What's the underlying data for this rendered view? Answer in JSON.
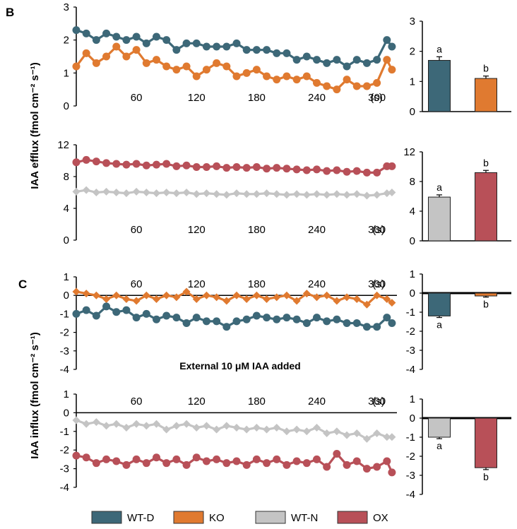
{
  "panel_labels": {
    "B": "B",
    "C": "C"
  },
  "axis_labels": {
    "efflux": "IAA efflux (fmol cm⁻² s⁻¹)",
    "influx": "IAA influx (fmol cm⁻² s⁻¹)"
  },
  "annotation": "External 10 μM IAA added",
  "time_unit": "(s)",
  "legend": [
    {
      "key": "wtd",
      "label": "WT-D",
      "color": "#3d6878"
    },
    {
      "key": "ko",
      "label": "KO",
      "color": "#e07a30"
    },
    {
      "key": "wtn",
      "label": "WT-N",
      "color": "#c4c4c4"
    },
    {
      "key": "ox",
      "label": "OX",
      "color": "#b85058"
    }
  ],
  "chart_data": [
    {
      "type": "line",
      "id": "B-top",
      "x_ticks": [
        60,
        120,
        180,
        240,
        300
      ],
      "y_ticks": [
        0,
        1,
        2,
        3
      ],
      "ylim": [
        0,
        3
      ],
      "xlim": [
        0,
        320
      ],
      "series": [
        {
          "name": "WT-D",
          "color": "#3d6878",
          "marker": "circle",
          "x": [
            0,
            10,
            20,
            30,
            40,
            50,
            60,
            70,
            80,
            90,
            100,
            110,
            120,
            130,
            140,
            150,
            160,
            170,
            180,
            190,
            200,
            210,
            220,
            230,
            240,
            250,
            260,
            270,
            280,
            290,
            300,
            310,
            315
          ],
          "y": [
            2.3,
            2.2,
            2.0,
            2.2,
            2.1,
            2.0,
            2.1,
            1.9,
            2.1,
            2.0,
            1.7,
            1.9,
            1.9,
            1.8,
            1.8,
            1.8,
            1.9,
            1.7,
            1.7,
            1.7,
            1.6,
            1.6,
            1.4,
            1.5,
            1.4,
            1.3,
            1.4,
            1.2,
            1.4,
            1.3,
            1.4,
            2.0,
            1.8
          ]
        },
        {
          "name": "KO",
          "color": "#e07a30",
          "marker": "circle",
          "x": [
            0,
            10,
            20,
            30,
            40,
            50,
            60,
            70,
            80,
            90,
            100,
            110,
            120,
            130,
            140,
            150,
            160,
            170,
            180,
            190,
            200,
            210,
            220,
            230,
            240,
            250,
            260,
            270,
            280,
            290,
            300,
            310,
            315
          ],
          "y": [
            1.2,
            1.6,
            1.3,
            1.5,
            1.8,
            1.5,
            1.7,
            1.3,
            1.4,
            1.2,
            1.1,
            1.2,
            0.9,
            1.1,
            1.3,
            1.2,
            0.9,
            1.0,
            1.1,
            0.9,
            0.8,
            0.9,
            0.8,
            0.9,
            0.7,
            0.6,
            0.5,
            0.8,
            0.6,
            0.6,
            0.7,
            1.4,
            1.1
          ]
        }
      ]
    },
    {
      "type": "bar",
      "id": "B-top-bar",
      "categories": [
        "WT-D",
        "KO"
      ],
      "values": [
        1.7,
        1.1
      ],
      "errors": [
        0.12,
        0.08
      ],
      "letters": [
        "a",
        "b"
      ],
      "y_ticks": [
        0,
        1,
        2,
        3
      ],
      "ylim": [
        0,
        3
      ]
    },
    {
      "type": "line",
      "id": "B-bottom",
      "x_ticks": [
        60,
        120,
        180,
        240,
        300
      ],
      "y_ticks": [
        0,
        4,
        8,
        12
      ],
      "ylim": [
        0,
        12
      ],
      "xlim": [
        0,
        320
      ],
      "series": [
        {
          "name": "OX",
          "color": "#b85058",
          "marker": "circle",
          "x": [
            0,
            10,
            20,
            30,
            40,
            50,
            60,
            70,
            80,
            90,
            100,
            110,
            120,
            130,
            140,
            150,
            160,
            170,
            180,
            190,
            200,
            210,
            220,
            230,
            240,
            250,
            260,
            270,
            280,
            290,
            300,
            310,
            315
          ],
          "y": [
            9.8,
            10.1,
            9.9,
            9.7,
            9.6,
            9.5,
            9.6,
            9.4,
            9.5,
            9.6,
            9.3,
            9.4,
            9.2,
            9.2,
            9.3,
            9.1,
            9.2,
            9.1,
            9.2,
            9.0,
            9.1,
            9.0,
            8.9,
            8.8,
            8.9,
            8.7,
            8.8,
            8.6,
            8.7,
            8.5,
            8.5,
            9.3,
            9.3
          ]
        },
        {
          "name": "WT-N",
          "color": "#c4c4c4",
          "marker": "diamond",
          "x": [
            0,
            10,
            20,
            30,
            40,
            50,
            60,
            70,
            80,
            90,
            100,
            110,
            120,
            130,
            140,
            150,
            160,
            170,
            180,
            190,
            200,
            210,
            220,
            230,
            240,
            250,
            260,
            270,
            280,
            290,
            300,
            310,
            315
          ],
          "y": [
            6.1,
            6.3,
            6.0,
            6.1,
            6.0,
            5.9,
            6.1,
            6.0,
            5.9,
            6.0,
            5.9,
            6.0,
            5.8,
            5.9,
            5.8,
            5.7,
            5.9,
            5.8,
            5.8,
            5.9,
            5.8,
            5.7,
            5.8,
            5.7,
            5.8,
            5.7,
            5.8,
            5.7,
            5.8,
            5.6,
            5.7,
            5.9,
            6.0
          ]
        }
      ]
    },
    {
      "type": "bar",
      "id": "B-bottom-bar",
      "categories": [
        "WT-N",
        "OX"
      ],
      "values": [
        5.9,
        9.2
      ],
      "errors": [
        0.3,
        0.3
      ],
      "letters": [
        "a",
        "b"
      ],
      "y_ticks": [
        0,
        4,
        8,
        12
      ],
      "ylim": [
        0,
        12
      ]
    },
    {
      "type": "line",
      "id": "C-top",
      "x_ticks": [
        60,
        120,
        180,
        240,
        300
      ],
      "y_ticks": [
        1,
        0,
        -1,
        -2,
        -3,
        -4
      ],
      "ylim": [
        -4,
        1
      ],
      "xlim": [
        0,
        320
      ],
      "series": [
        {
          "name": "KO",
          "color": "#e07a30",
          "marker": "diamond",
          "x": [
            0,
            10,
            20,
            30,
            40,
            50,
            60,
            70,
            80,
            90,
            100,
            110,
            120,
            130,
            140,
            150,
            160,
            170,
            180,
            190,
            200,
            210,
            220,
            230,
            240,
            250,
            260,
            270,
            280,
            290,
            300,
            310,
            315
          ],
          "y": [
            0.2,
            0.1,
            0.0,
            -0.2,
            0.0,
            -0.2,
            -0.3,
            0.0,
            -0.2,
            0.0,
            -0.1,
            0.2,
            -0.2,
            0.0,
            -0.1,
            -0.3,
            0.0,
            -0.2,
            0.0,
            -0.2,
            -0.1,
            0.0,
            -0.3,
            0.1,
            -0.1,
            0.0,
            -0.3,
            -0.1,
            -0.2,
            -0.5,
            0.0,
            -0.2,
            -0.4
          ]
        },
        {
          "name": "WT-D",
          "color": "#3d6878",
          "marker": "circle",
          "x": [
            0,
            10,
            20,
            30,
            40,
            50,
            60,
            70,
            80,
            90,
            100,
            110,
            120,
            130,
            140,
            150,
            160,
            170,
            180,
            190,
            200,
            210,
            220,
            230,
            240,
            250,
            260,
            270,
            280,
            290,
            300,
            310,
            315
          ],
          "y": [
            -1.0,
            -0.8,
            -1.1,
            -0.6,
            -0.9,
            -0.8,
            -1.2,
            -1.0,
            -1.3,
            -1.1,
            -1.2,
            -1.5,
            -1.2,
            -1.4,
            -1.4,
            -1.7,
            -1.4,
            -1.3,
            -1.1,
            -1.2,
            -1.3,
            -1.2,
            -1.3,
            -1.5,
            -1.2,
            -1.4,
            -1.3,
            -1.5,
            -1.5,
            -1.7,
            -1.7,
            -1.2,
            -1.5
          ]
        }
      ]
    },
    {
      "type": "bar",
      "id": "C-top-bar",
      "categories": [
        "WT-D",
        "KO"
      ],
      "values": [
        -1.2,
        -0.15
      ],
      "errors": [
        0.08,
        0.06
      ],
      "letters": [
        "a",
        "b"
      ],
      "y_ticks": [
        1,
        0,
        -1,
        -2,
        -3,
        -4
      ],
      "ylim": [
        -4,
        1
      ]
    },
    {
      "type": "line",
      "id": "C-bottom",
      "x_ticks": [
        60,
        120,
        180,
        240,
        300
      ],
      "y_ticks": [
        1,
        0,
        -1,
        -2,
        -3,
        -4
      ],
      "ylim": [
        -4,
        1
      ],
      "xlim": [
        0,
        320
      ],
      "series": [
        {
          "name": "WT-N",
          "color": "#c4c4c4",
          "marker": "diamond",
          "x": [
            0,
            10,
            20,
            30,
            40,
            50,
            60,
            70,
            80,
            90,
            100,
            110,
            120,
            130,
            140,
            150,
            160,
            170,
            180,
            190,
            200,
            210,
            220,
            230,
            240,
            250,
            260,
            270,
            280,
            290,
            300,
            310,
            315
          ],
          "y": [
            -0.4,
            -0.6,
            -0.5,
            -0.7,
            -0.6,
            -0.8,
            -0.6,
            -0.7,
            -0.6,
            -0.9,
            -0.7,
            -0.6,
            -0.8,
            -0.7,
            -0.9,
            -0.7,
            -0.8,
            -0.9,
            -0.8,
            -0.9,
            -0.8,
            -1.0,
            -0.9,
            -1.0,
            -0.8,
            -1.1,
            -1.0,
            -1.2,
            -1.1,
            -1.4,
            -1.1,
            -1.3,
            -1.3
          ]
        },
        {
          "name": "OX",
          "color": "#b85058",
          "marker": "circle",
          "x": [
            0,
            10,
            20,
            30,
            40,
            50,
            60,
            70,
            80,
            90,
            100,
            110,
            120,
            130,
            140,
            150,
            160,
            170,
            180,
            190,
            200,
            210,
            220,
            230,
            240,
            250,
            260,
            270,
            280,
            290,
            300,
            310,
            315
          ],
          "y": [
            -2.3,
            -2.4,
            -2.7,
            -2.5,
            -2.6,
            -2.8,
            -2.5,
            -2.7,
            -2.4,
            -2.7,
            -2.5,
            -2.8,
            -2.4,
            -2.6,
            -2.5,
            -2.7,
            -2.6,
            -2.8,
            -2.5,
            -2.7,
            -2.5,
            -2.8,
            -2.6,
            -2.7,
            -2.5,
            -2.9,
            -2.2,
            -2.8,
            -2.6,
            -3.0,
            -2.9,
            -2.6,
            -3.2
          ]
        }
      ]
    },
    {
      "type": "bar",
      "id": "C-bottom-bar",
      "categories": [
        "WT-N",
        "OX"
      ],
      "values": [
        -1.0,
        -2.6
      ],
      "errors": [
        0.08,
        0.1
      ],
      "letters": [
        "a",
        "b"
      ],
      "y_ticks": [
        1,
        0,
        -1,
        -2,
        -3,
        -4
      ],
      "ylim": [
        -4,
        1
      ]
    }
  ]
}
